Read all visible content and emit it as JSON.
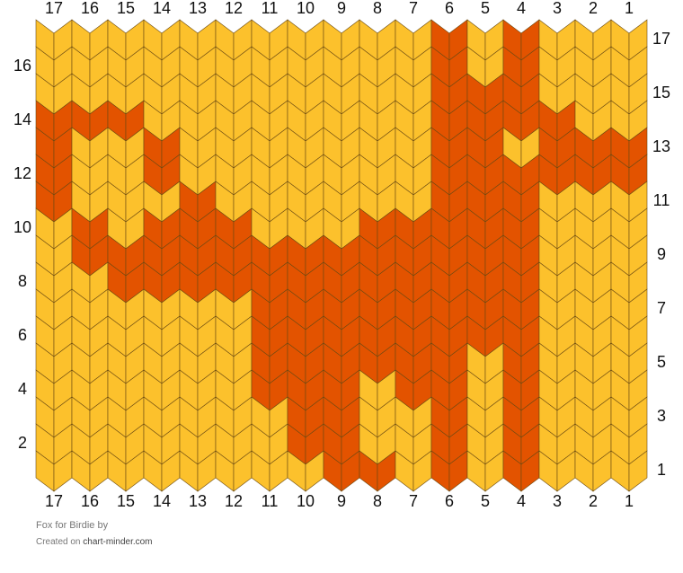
{
  "chart": {
    "columns": [
      17,
      16,
      15,
      14,
      13,
      12,
      11,
      10,
      9,
      8,
      7,
      6,
      5,
      4,
      3,
      2,
      1
    ],
    "rows_left": [
      16,
      14,
      12,
      10,
      8,
      6,
      4,
      2
    ],
    "rows_right": [
      17,
      15,
      13,
      11,
      9,
      7,
      5,
      3,
      1
    ],
    "palette": {
      "Y": "#fcc12c",
      "O": "#e35300"
    },
    "grid": [
      "YYYYYYYYYYYOYOYYY",
      "YYYYYYYYYYYOYOYYY",
      "YYYYYYYYYYYOOOYYY",
      "OOOYYYYYYYYOOOOYY",
      "OYYOYYYYYYYOOYOOO",
      "OYYOYYYYYYYOOOOOO",
      "OYYYOYYYYYYOOOYYY",
      "YOYOOOYYYOOOOOYYY",
      "YOOOOOOOOOOOOOYYY",
      "YYOOOOOOOOOOOOYYY",
      "YYYYYYOOOOOOOOYYY",
      "YYYYYYOOOOOOOOYYY",
      "YYYYYYOOOOOOYOYYY",
      "YYYYYYOOOYOOYOYYY",
      "YYYYYYYOOYYOYOYYY",
      "YYYYYYYOOYYOYOYYY",
      "YYYYYYYYOOYOYOYYY"
    ]
  },
  "footer": {
    "title": "Fox for Birdie",
    "by": "by",
    "created": "Created on",
    "site": "chart-minder.com"
  }
}
